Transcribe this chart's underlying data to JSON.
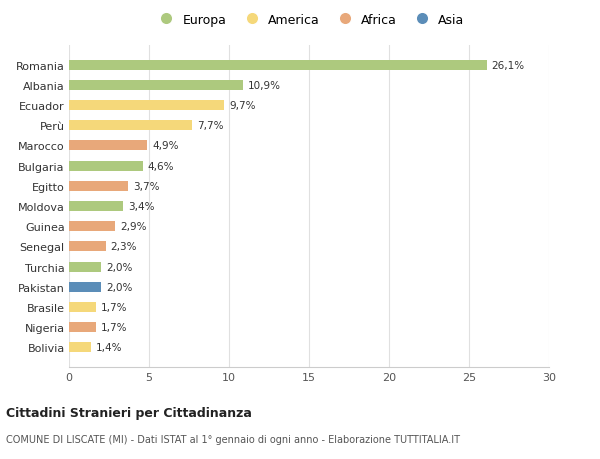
{
  "countries": [
    "Romania",
    "Albania",
    "Ecuador",
    "Perù",
    "Marocco",
    "Bulgaria",
    "Egitto",
    "Moldova",
    "Guinea",
    "Senegal",
    "Turchia",
    "Pakistan",
    "Brasile",
    "Nigeria",
    "Bolivia"
  ],
  "values": [
    26.1,
    10.9,
    9.7,
    7.7,
    4.9,
    4.6,
    3.7,
    3.4,
    2.9,
    2.3,
    2.0,
    2.0,
    1.7,
    1.7,
    1.4
  ],
  "labels": [
    "26,1%",
    "10,9%",
    "9,7%",
    "7,7%",
    "4,9%",
    "4,6%",
    "3,7%",
    "3,4%",
    "2,9%",
    "2,3%",
    "2,0%",
    "2,0%",
    "1,7%",
    "1,7%",
    "1,4%"
  ],
  "colors": [
    "#adc97e",
    "#adc97e",
    "#f5d87a",
    "#f5d87a",
    "#e8a87a",
    "#adc97e",
    "#e8a87a",
    "#adc97e",
    "#e8a87a",
    "#e8a87a",
    "#adc97e",
    "#5b8db8",
    "#f5d87a",
    "#e8a87a",
    "#f5d87a"
  ],
  "legend": {
    "Europa": "#adc97e",
    "America": "#f5d87a",
    "Africa": "#e8a87a",
    "Asia": "#5b8db8"
  },
  "title1": "Cittadini Stranieri per Cittadinanza",
  "title2": "COMUNE DI LISCATE (MI) - Dati ISTAT al 1° gennaio di ogni anno - Elaborazione TUTTITALIA.IT",
  "xlim": [
    0,
    30
  ],
  "xticks": [
    0,
    5,
    10,
    15,
    20,
    25,
    30
  ],
  "background_color": "#ffffff",
  "grid_color": "#e0e0e0",
  "bar_height": 0.5
}
